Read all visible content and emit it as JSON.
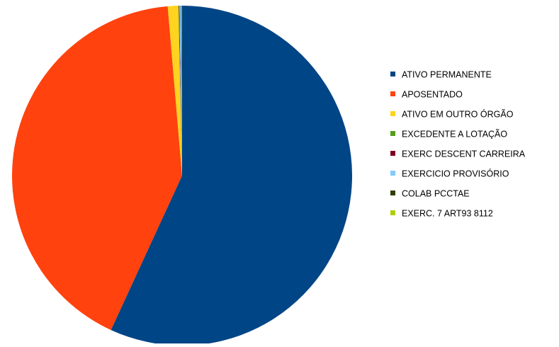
{
  "chart_data": {
    "type": "pie",
    "title": "",
    "legend_position": "right",
    "slices": [
      {
        "label": "ATIVO PERMANENTE",
        "value": 56.9,
        "color": "#004586"
      },
      {
        "label": "APOSENTADO",
        "value": 41.8,
        "color": "#FF420E"
      },
      {
        "label": "ATIVO EM OUTRO ÓRGÃO",
        "value": 1.0,
        "color": "#FFD320"
      },
      {
        "label": "EXCEDENTE A LOTAÇÃO",
        "value": 0.05,
        "color": "#579D1C"
      },
      {
        "label": "EXERC DESCENT CARREIRA",
        "value": 0.05,
        "color": "#7E0021"
      },
      {
        "label": "EXERCICIO PROVISÓRIO",
        "value": 0.15,
        "color": "#83CAFF"
      },
      {
        "label": "COLAB PCCTAE",
        "value": 0.05,
        "color": "#314004"
      },
      {
        "label": "EXERC. 7  ART93 8112",
        "value": 0.05,
        "color": "#AECF00"
      }
    ]
  }
}
